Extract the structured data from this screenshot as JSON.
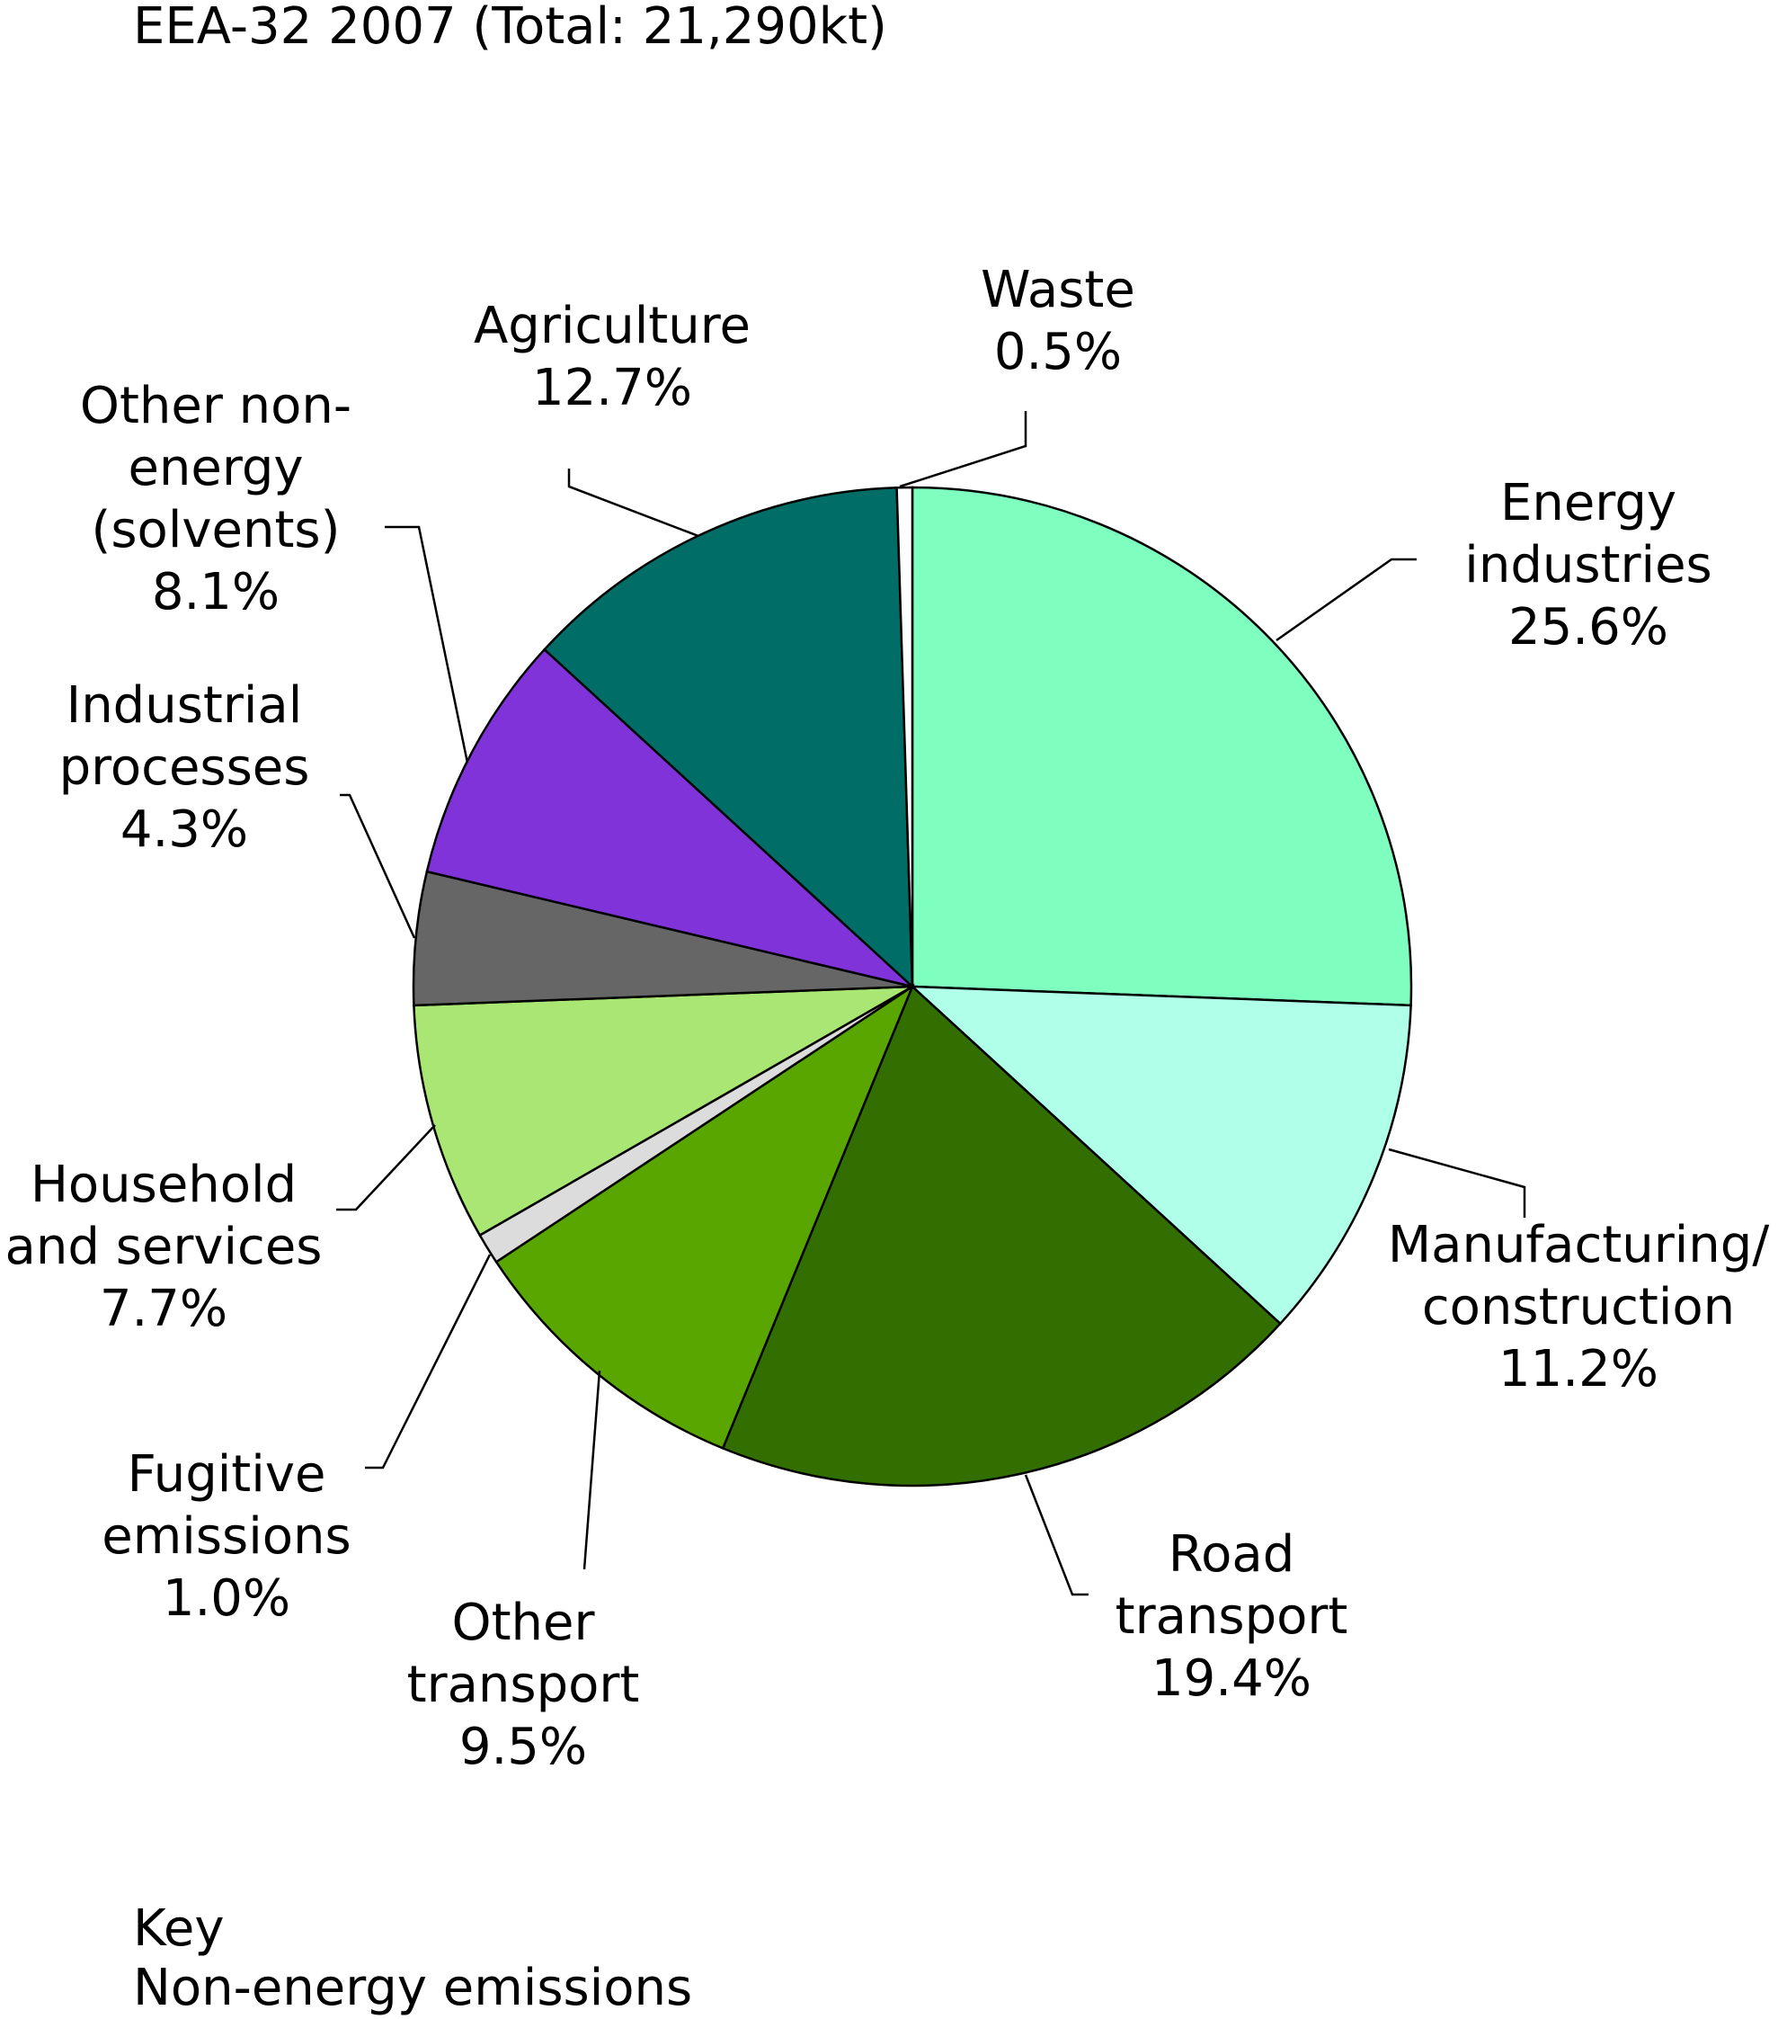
{
  "chart_data": {
    "type": "pie",
    "title": "EEA-32 2007 (Total: 21,290kt)",
    "footnote_lines": [
      "Key",
      "Non-energy emissions"
    ],
    "slices": [
      {
        "label_lines": [
          "Energy",
          "industries"
        ],
        "value_label": "25.6%",
        "value": 25.6,
        "color": "#7fffbf"
      },
      {
        "label_lines": [
          "Manufacturing/",
          "construction"
        ],
        "value_label": "11.2%",
        "value": 11.2,
        "color": "#b0ffe8"
      },
      {
        "label_lines": [
          "Road",
          "transport"
        ],
        "value_label": "19.4%",
        "value": 19.4,
        "color": "#336f00"
      },
      {
        "label_lines": [
          "Other",
          "transport"
        ],
        "value_label": "9.5%",
        "value": 9.5,
        "color": "#5aa600"
      },
      {
        "label_lines": [
          "Fugitive",
          "emissions"
        ],
        "value_label": "1.0%",
        "value": 1.0,
        "color": "#dcdcdc"
      },
      {
        "label_lines": [
          "Household",
          "and services"
        ],
        "value_label": "7.7%",
        "value": 7.7,
        "color": "#aae673"
      },
      {
        "label_lines": [
          "Industrial",
          "processes"
        ],
        "value_label": "4.3%",
        "value": 4.3,
        "color": "#666666"
      },
      {
        "label_lines": [
          "Other non-",
          "energy",
          "(solvents)"
        ],
        "value_label": "8.1%",
        "value": 8.1,
        "color": "#8033d9"
      },
      {
        "label_lines": [
          "Agriculture"
        ],
        "value_label": "12.7%",
        "value": 12.7,
        "color": "#006e66"
      },
      {
        "label_lines": [
          "Waste"
        ],
        "value_label": "0.5%",
        "value": 0.5,
        "color": "#ffffff"
      }
    ]
  }
}
